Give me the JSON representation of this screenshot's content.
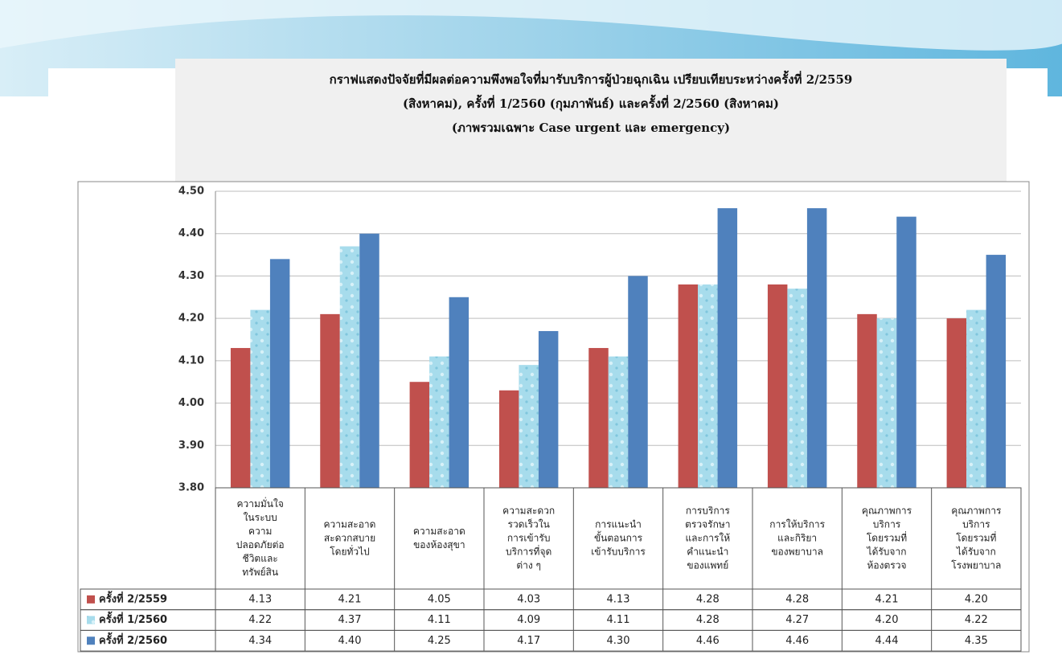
{
  "chart_data": {
    "type": "bar",
    "title": [
      "กราฟแสดงปัจจัยที่มีผลต่อความพึงพอใจที่มารับบริการผู้ป่วยฉุกเฉิน   เปรียบเทียบระหว่างครั้งที่ 2/2559",
      "(สิงหาคม), ครั้งที่ 1/2560 (กุมภาพันธ์) และครั้งที่ 2/2560 (สิงหาคม)",
      "(ภาพรวมเฉพาะ Case urgent และ emergency)"
    ],
    "categories": [
      [
        "ความมั่นใจ",
        "ในระบบ",
        "ความ",
        "ปลอดภัยต่อ",
        "ชีวิตและ",
        "ทรัพย์สิน"
      ],
      [
        "ความสะอาด",
        "สะดวกสบาย",
        "โดยทั่วไป"
      ],
      [
        "ความสะอาด",
        "ของห้องสุขา"
      ],
      [
        "ความสะดวก",
        "รวดเร็วใน",
        "การเข้ารับ",
        "บริการที่จุด",
        "ต่าง ๆ"
      ],
      [
        "การแนะนำ",
        "ขั้นตอนการ",
        "เข้ารับบริการ"
      ],
      [
        "การบริการ",
        "ตรวจรักษา",
        "และการให้",
        "คำแนะนำ",
        "ของแพทย์"
      ],
      [
        "การให้บริการ",
        "และกิริยา",
        "ของพยาบาล"
      ],
      [
        "คุณภาพการ",
        "บริการ",
        "โดยรวมที่",
        "ได้รับจาก",
        "ห้องตรวจ"
      ],
      [
        "คุณภาพการ",
        "บริการ",
        "โดยรวมที่",
        "ได้รับจาก",
        "โรงพยาบาล"
      ]
    ],
    "series": [
      {
        "name": "ครั้งที่ 2/2559",
        "color": "#c0504d",
        "values": [
          4.13,
          4.21,
          4.05,
          4.03,
          4.13,
          4.28,
          4.28,
          4.21,
          4.2
        ],
        "value_labels": [
          "4.13",
          "4.21",
          "4.05",
          "4.03",
          "4.13",
          "4.28",
          "4.28",
          "4.21",
          "4.20"
        ]
      },
      {
        "name": "ครั้งที่ 1/2560",
        "color": "#9ed6e8",
        "values": [
          4.22,
          4.37,
          4.11,
          4.09,
          4.11,
          4.28,
          4.27,
          4.2,
          4.22
        ],
        "value_labels": [
          "4.22",
          "4.37",
          "4.11",
          "4.09",
          "4.11",
          "4.28",
          "4.27",
          "4.20",
          "4.22"
        ]
      },
      {
        "name": "ครั้งที่ 2/2560",
        "color": "#4f81bd",
        "values": [
          4.34,
          4.4,
          4.25,
          4.17,
          4.3,
          4.46,
          4.46,
          4.44,
          4.35
        ],
        "value_labels": [
          "4.34",
          "4.40",
          "4.25",
          "4.17",
          "4.30",
          "4.46",
          "4.46",
          "4.44",
          "4.35"
        ]
      }
    ],
    "ylim": [
      3.8,
      4.5
    ],
    "yticks": [
      {
        "value": 3.8,
        "label": "3.80"
      },
      {
        "value": 3.9,
        "label": "3.90"
      },
      {
        "value": 4.0,
        "label": "4.00"
      },
      {
        "value": 4.1,
        "label": "4.10"
      },
      {
        "value": 4.2,
        "label": "4.20"
      },
      {
        "value": 4.3,
        "label": "4.30"
      },
      {
        "value": 4.4,
        "label": "4.40"
      },
      {
        "value": 4.5,
        "label": "4.50"
      }
    ],
    "grid": true
  }
}
